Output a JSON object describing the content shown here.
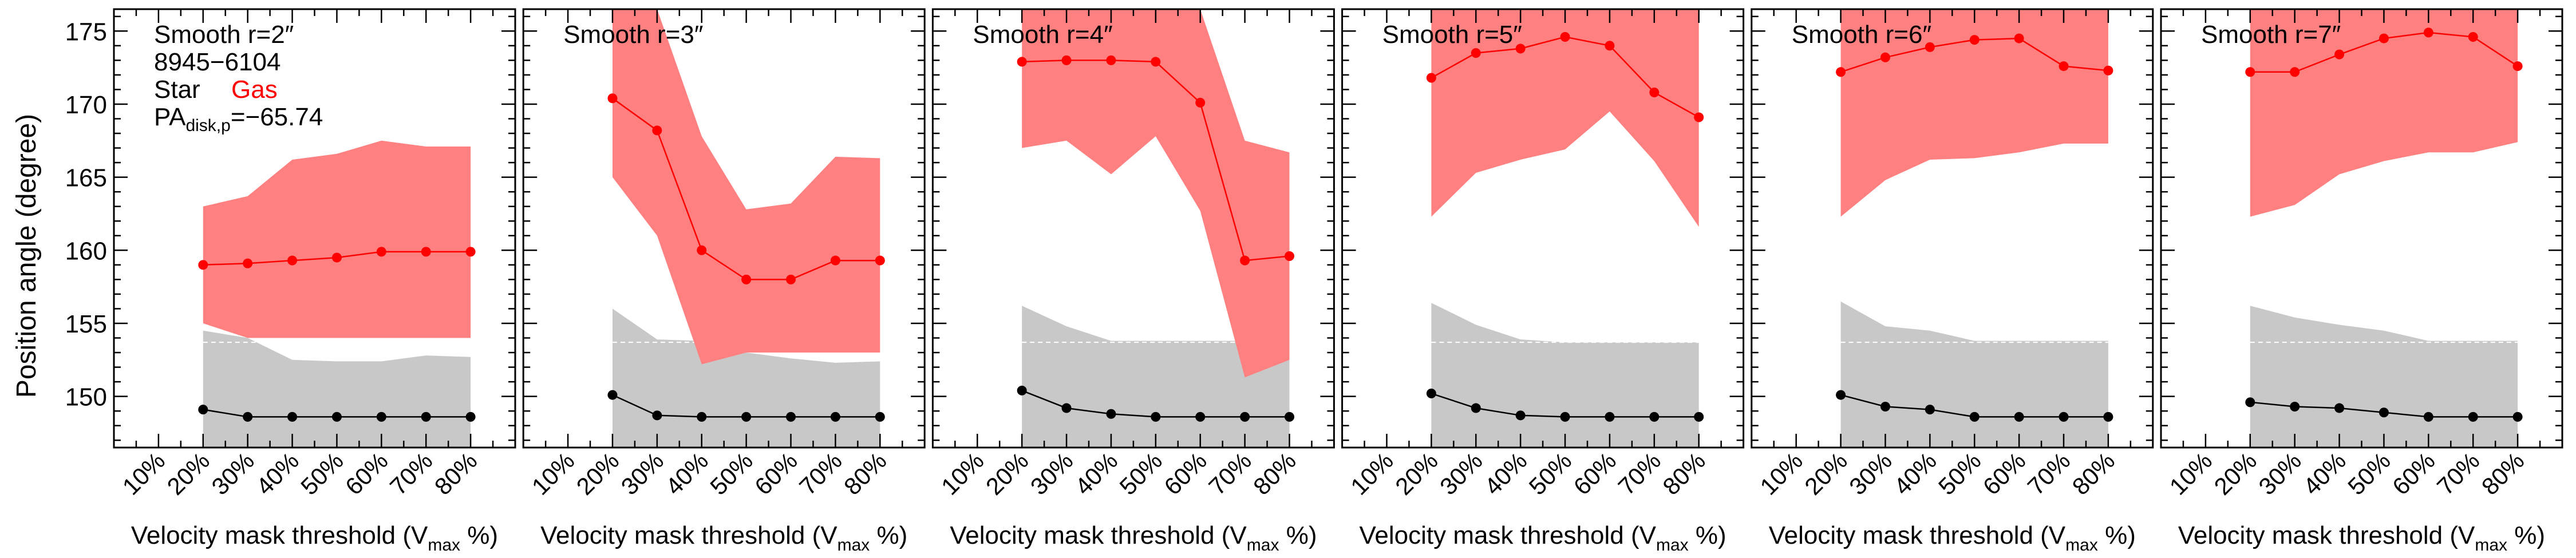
{
  "figure": {
    "ylabel": "Position angle (degree)",
    "xlabel_main": "Velocity mask threshold (V",
    "xlabel_sub": "max",
    "xlabel_tail": " %)",
    "galaxy_id": "8945−6104",
    "legend_star": "Star",
    "legend_gas": "Gas",
    "pa_prefix": "PA",
    "pa_sub": "disk,p",
    "pa_value": "=−65.74"
  },
  "colors": {
    "star": "#000000",
    "star_band": "#c8c8c8",
    "gas": "#ff0000",
    "gas_band": "#ff8080",
    "axis": "#000000",
    "dash": "#ffffff"
  },
  "chart_data": {
    "type": "line",
    "ylim": [
      146.5,
      176.5
    ],
    "yticks": [
      150,
      155,
      160,
      165,
      170,
      175
    ],
    "categories": [
      "10%",
      "20%",
      "30%",
      "40%",
      "50%",
      "60%",
      "70%",
      "80%"
    ],
    "xlim": [
      0,
      90
    ],
    "x": [
      20,
      30,
      40,
      50,
      60,
      70,
      80
    ],
    "band_bottom": 146.5,
    "star_dashed_level": 153.7,
    "panels": [
      {
        "title": "Smooth r=2″",
        "star": [
          149.1,
          148.6,
          148.6,
          148.6,
          148.6,
          148.6,
          148.6
        ],
        "star_upper": [
          154.5,
          154.0,
          152.5,
          152.4,
          152.4,
          152.8,
          152.7
        ],
        "gas": [
          159.0,
          159.1,
          159.3,
          159.5,
          159.9,
          159.9,
          159.9
        ],
        "gas_upper": [
          163.0,
          163.7,
          166.2,
          166.6,
          167.5,
          167.1,
          167.1
        ],
        "gas_lower": [
          155.0,
          154.0,
          154.0,
          154.0,
          154.0,
          154.0,
          154.0
        ]
      },
      {
        "title": "Smooth r=3″",
        "star": [
          150.1,
          148.7,
          148.6,
          148.6,
          148.6,
          148.6,
          148.6
        ],
        "star_upper": [
          156.0,
          153.9,
          153.8,
          153.0,
          152.6,
          152.3,
          152.4
        ],
        "gas": [
          170.4,
          168.2,
          160.0,
          158.0,
          158.0,
          159.3,
          159.3
        ],
        "gas_upper": [
          176.5,
          176.5,
          167.8,
          162.8,
          163.2,
          166.4,
          166.3
        ],
        "gas_lower": [
          165.0,
          161.0,
          152.2,
          153.0,
          153.0,
          153.0,
          153.0
        ]
      },
      {
        "title": "Smooth r=4″",
        "star": [
          150.4,
          149.2,
          148.8,
          148.6,
          148.6,
          148.6,
          148.6
        ],
        "star_upper": [
          156.2,
          154.8,
          153.8,
          153.8,
          153.8,
          153.8,
          153.8
        ],
        "gas": [
          172.9,
          173.0,
          173.0,
          172.9,
          170.1,
          159.3,
          159.6
        ],
        "gas_upper": [
          176.5,
          176.5,
          176.5,
          176.5,
          176.5,
          167.5,
          166.7
        ],
        "gas_lower": [
          167.0,
          167.5,
          165.2,
          167.8,
          162.7,
          151.3,
          152.5
        ]
      },
      {
        "title": "Smooth r=5″",
        "star": [
          150.2,
          149.2,
          148.7,
          148.6,
          148.6,
          148.6,
          148.6
        ],
        "star_upper": [
          156.4,
          154.9,
          153.9,
          153.7,
          153.7,
          153.7,
          153.7
        ],
        "gas": [
          171.8,
          173.5,
          173.8,
          174.6,
          174.0,
          170.8,
          169.1
        ],
        "gas_upper": [
          176.5,
          176.5,
          176.5,
          176.5,
          176.5,
          176.5,
          176.5
        ],
        "gas_lower": [
          162.3,
          165.3,
          166.2,
          166.9,
          169.5,
          166.1,
          161.6
        ]
      },
      {
        "title": "Smooth r=6″",
        "star": [
          150.1,
          149.3,
          149.1,
          148.6,
          148.6,
          148.6,
          148.6
        ],
        "star_upper": [
          156.5,
          154.8,
          154.5,
          153.8,
          153.8,
          153.8,
          153.8
        ],
        "gas": [
          172.2,
          173.2,
          173.9,
          174.4,
          174.5,
          172.6,
          172.3
        ],
        "gas_upper": [
          176.5,
          176.5,
          176.5,
          176.5,
          176.5,
          176.5,
          176.5
        ],
        "gas_lower": [
          162.3,
          164.8,
          166.2,
          166.3,
          166.7,
          167.3,
          167.3
        ]
      },
      {
        "title": "Smooth r=7″",
        "star": [
          149.6,
          149.3,
          149.2,
          148.9,
          148.6,
          148.6,
          148.6
        ],
        "star_upper": [
          156.2,
          155.4,
          154.9,
          154.5,
          153.8,
          153.8,
          153.8
        ],
        "gas": [
          172.2,
          172.2,
          173.4,
          174.5,
          174.9,
          174.6,
          172.6
        ],
        "gas_upper": [
          176.5,
          176.5,
          176.5,
          176.5,
          176.5,
          176.5,
          176.5
        ],
        "gas_lower": [
          162.3,
          163.1,
          165.2,
          166.1,
          166.7,
          166.7,
          167.4
        ]
      }
    ]
  }
}
